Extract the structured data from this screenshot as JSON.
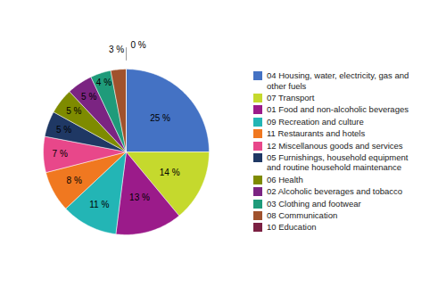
{
  "chart_data": {
    "type": "pie",
    "categories": [
      "04 Housing, water, electricity, gas and\n other fuels",
      "07 Transport",
      "01 Food and non-alcoholic beverages",
      "09 Recreation and culture",
      "11 Restaurants and hotels",
      "12 Miscellanous goods and services",
      "05 Furnishings, household equipment\n and routine household maintenance",
      "06 Health",
      "02 Alcoholic beverages and tobacco",
      "03 Clothing and footwear",
      "08 Communication",
      "10 Education"
    ],
    "values": [
      25,
      14,
      13,
      11,
      8,
      7,
      5,
      5,
      5,
      4,
      3,
      0
    ],
    "value_labels": [
      "25 %",
      "14 %",
      "13 %",
      "11 %",
      "8 %",
      "7 %",
      "5 %",
      "5 %",
      "5 %",
      "4 %",
      "3 %",
      "0 %"
    ],
    "colors": [
      "#4472C4",
      "#C5D92D",
      "#9B1B8A",
      "#23B5B5",
      "#F07820",
      "#E8478A",
      "#1F3864",
      "#7E8B00",
      "#7B2482",
      "#1F9B7A",
      "#A0522D",
      "#7B2042"
    ],
    "data_labels": true,
    "legend": "right"
  }
}
